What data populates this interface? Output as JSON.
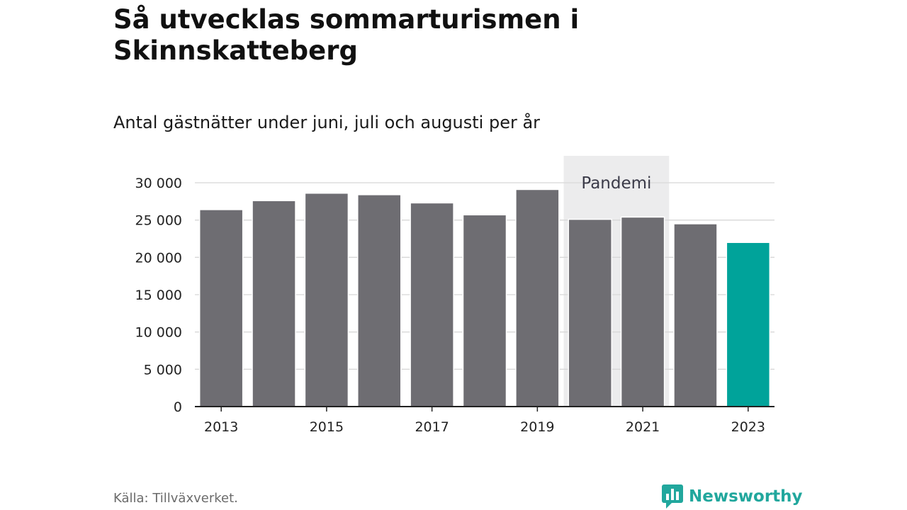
{
  "header": {
    "title": "Så utvecklas sommarturismen i Skinnskatteberg",
    "subtitle": "Antal gästnätter under juni, juli och augusti per år"
  },
  "footer": {
    "source": "Källa: Tillväxverket.",
    "brand": "Newsworthy"
  },
  "colors": {
    "bar": "#6e6d72",
    "highlight": "#00a39a",
    "annotation_band": "#ececed",
    "brand": "#21a79d"
  },
  "chart_data": {
    "type": "bar",
    "categories": [
      "2013",
      "2014",
      "2015",
      "2016",
      "2017",
      "2018",
      "2019",
      "2020",
      "2021",
      "2022",
      "2023"
    ],
    "values": [
      26400,
      27600,
      28600,
      28400,
      27300,
      25700,
      29100,
      25100,
      25400,
      24500,
      22000
    ],
    "highlight_category": "2023",
    "x_tick_labels": [
      "2013",
      "2015",
      "2017",
      "2019",
      "2021",
      "2023"
    ],
    "y_ticks": [
      0,
      5000,
      10000,
      15000,
      20000,
      25000,
      30000
    ],
    "y_tick_labels": [
      "0",
      "5 000",
      "10 000",
      "15 000",
      "20 000",
      "25 000",
      "30 000"
    ],
    "ylim": [
      0,
      30000
    ],
    "grid": true,
    "annotation": {
      "label": "Pandemi",
      "from": "2020",
      "to": "2021"
    }
  }
}
